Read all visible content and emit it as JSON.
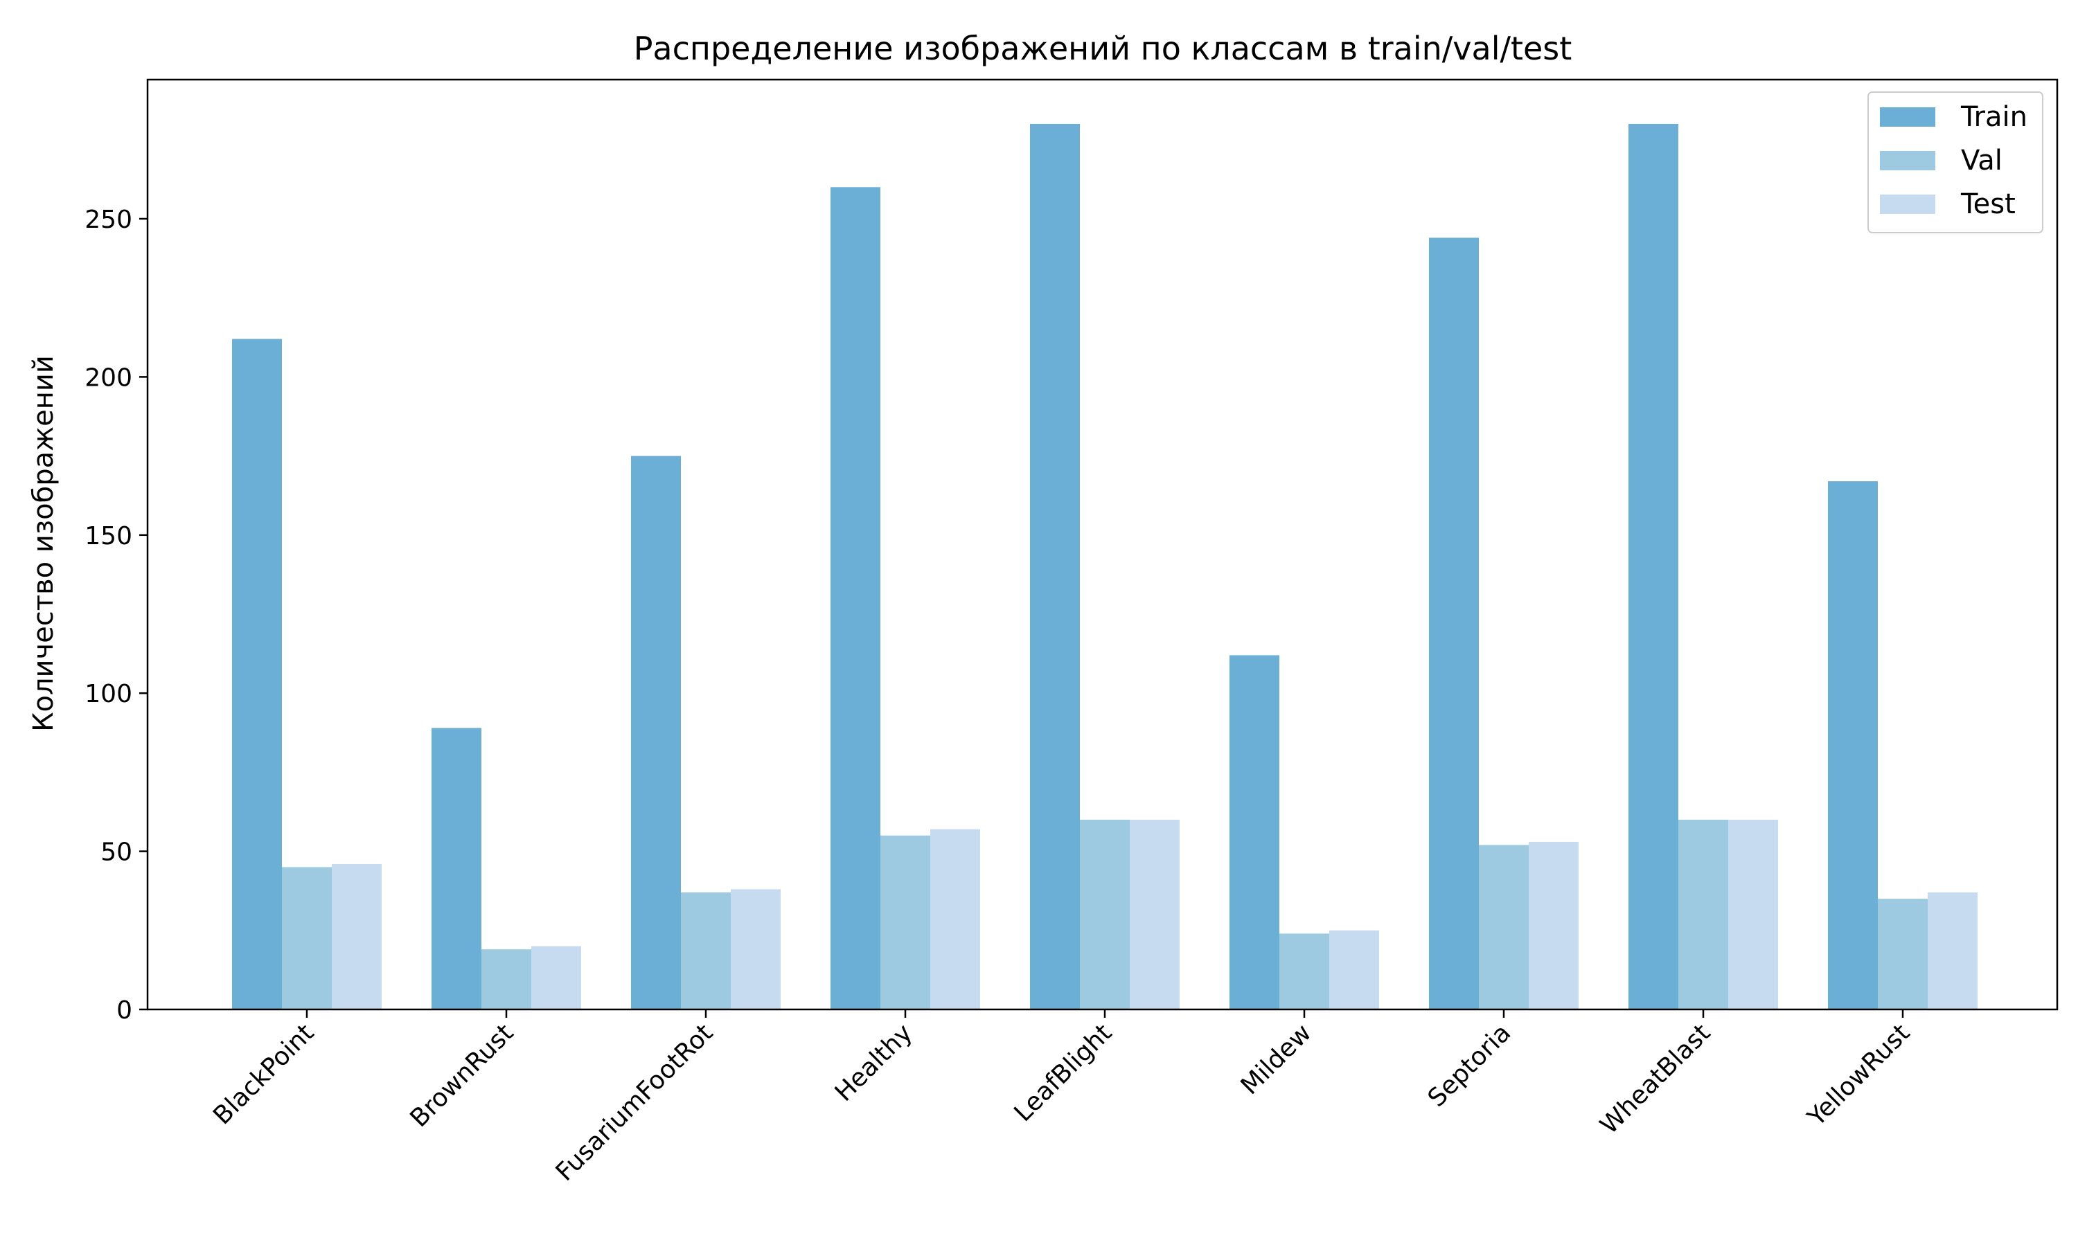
{
  "chart_data": {
    "type": "bar",
    "title": "Распределение изображений по классам в train/val/test",
    "xlabel": "",
    "ylabel": "Количество изображений",
    "categories": [
      "BlackPoint",
      "BrownRust",
      "FusariumFootRot",
      "Healthy",
      "LeafBlight",
      "Mildew",
      "Septoria",
      "WheatBlast",
      "YellowRust"
    ],
    "series": [
      {
        "name": "Train",
        "color": "#6baed6",
        "values": [
          212,
          89,
          175,
          260,
          280,
          112,
          244,
          280,
          167
        ]
      },
      {
        "name": "Val",
        "color": "#9ecae1",
        "values": [
          45,
          19,
          37,
          55,
          60,
          24,
          52,
          60,
          35
        ]
      },
      {
        "name": "Test",
        "color": "#c6dbef",
        "values": [
          46,
          20,
          38,
          57,
          60,
          25,
          53,
          60,
          37
        ]
      }
    ],
    "ylim": [
      0,
      294
    ],
    "yticks": [
      0,
      50,
      100,
      150,
      200,
      250
    ],
    "grid": false,
    "legend_position": "top-right"
  }
}
